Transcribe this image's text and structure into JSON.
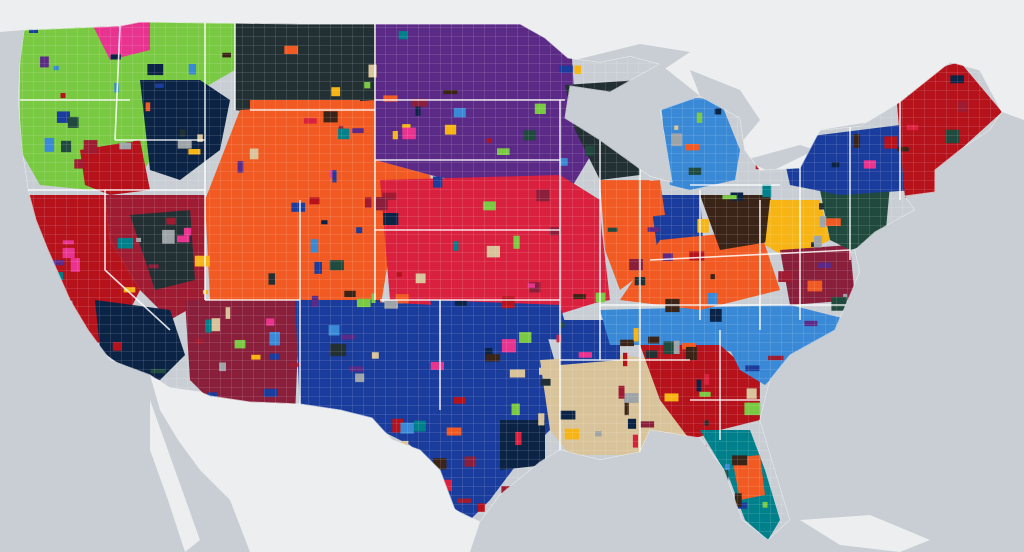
{
  "map": {
    "water_color": "#c8ced3",
    "land_color": "#eceeef",
    "border_color": "#ffffff",
    "team_colors": {
      "lime_green": "#7ac943",
      "crimson": "#b5121b",
      "dark_red": "#9e1b32",
      "navy": "#0b2345",
      "royal_blue": "#1a3c9c",
      "purple": "#5b2a86",
      "orange": "#f15a22",
      "magenta": "#e8348f",
      "red": "#d9213f",
      "maroon": "#8a1f3c",
      "light_blue": "#3a89d6",
      "dark_slate": "#233033",
      "tan": "#d8c39a",
      "gold": "#f7b515",
      "teal": "#00808a",
      "dark_green": "#1f4a3d",
      "brown": "#3a2418",
      "gray": "#9ea3a8"
    }
  }
}
